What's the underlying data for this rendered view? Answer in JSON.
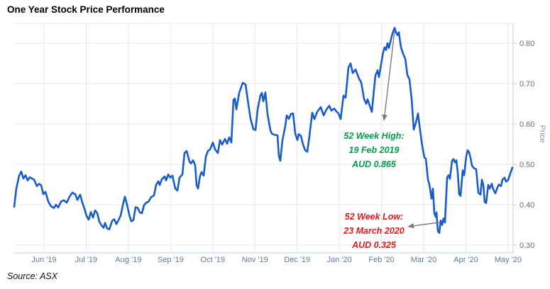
{
  "header": {
    "title": "One Year Stock Price Performance"
  },
  "footer": {
    "source": "Source: ASX"
  },
  "chart_data": {
    "type": "line",
    "title": "One Year Stock Price Performance",
    "xlabel": "",
    "ylabel": "Price",
    "line_color": "#1a5dc8",
    "grid": true,
    "legend_position": "none",
    "x_tick_labels": [
      "Jun '19",
      "Jul '19",
      "Aug '19",
      "Sep '19",
      "Oct '19",
      "Nov '19",
      "Dec '19",
      "Jan '20",
      "Feb '20",
      "Mar '20",
      "Apr '20",
      "May '20"
    ],
    "y_ticks": [
      0.3,
      0.4,
      0.5,
      0.6,
      0.7,
      0.8
    ],
    "y_tick_labels": [
      "0.30",
      "0.40",
      "0.50",
      "0.60",
      "0.70",
      "0.80"
    ],
    "ylim": [
      0.285,
      0.855
    ],
    "annotations": {
      "high": {
        "lines": [
          "52 Week High:",
          "19 Feb 2019",
          "AUD 0.865"
        ],
        "color": "#00a14c",
        "value": 0.865
      },
      "low": {
        "lines": [
          "52 Week Low:",
          "23 March 2020",
          "AUD 0.325"
        ],
        "color": "#e11b1b",
        "value": 0.325
      }
    },
    "series": [
      {
        "name": "Price",
        "points": [
          [
            20,
            0.395
          ],
          [
            23,
            0.44
          ],
          [
            27,
            0.472
          ],
          [
            30,
            0.482
          ],
          [
            33,
            0.465
          ],
          [
            36,
            0.473
          ],
          [
            39,
            0.46
          ],
          [
            42,
            0.468
          ],
          [
            45,
            0.465
          ],
          [
            48,
            0.462
          ],
          [
            52,
            0.446
          ],
          [
            55,
            0.452
          ],
          [
            58,
            0.448
          ],
          [
            61,
            0.426
          ],
          [
            64,
            0.432
          ],
          [
            68,
            0.408
          ],
          [
            72,
            0.396
          ],
          [
            76,
            0.392
          ],
          [
            79,
            0.4
          ],
          [
            82,
            0.393
          ],
          [
            86,
            0.408
          ],
          [
            90,
            0.411
          ],
          [
            94,
            0.405
          ],
          [
            98,
            0.42
          ],
          [
            102,
            0.43
          ],
          [
            106,
            0.426
          ],
          [
            109,
            0.412
          ],
          [
            113,
            0.425
          ],
          [
            116,
            0.405
          ],
          [
            119,
            0.39
          ],
          [
            122,
            0.372
          ],
          [
            125,
            0.363
          ],
          [
            128,
            0.382
          ],
          [
            131,
            0.368
          ],
          [
            134,
            0.386
          ],
          [
            137,
            0.379
          ],
          [
            140,
            0.358
          ],
          [
            143,
            0.349
          ],
          [
            146,
            0.343
          ],
          [
            148,
            0.355
          ],
          [
            151,
            0.341
          ],
          [
            154,
            0.339
          ],
          [
            158,
            0.36
          ],
          [
            161,
            0.364
          ],
          [
            164,
            0.352
          ],
          [
            167,
            0.362
          ],
          [
            170,
            0.373
          ],
          [
            173,
            0.398
          ],
          [
            176,
            0.42
          ],
          [
            179,
            0.4
          ],
          [
            182,
            0.376
          ],
          [
            185,
            0.359
          ],
          [
            188,
            0.362
          ],
          [
            191,
            0.394
          ],
          [
            194,
            0.392
          ],
          [
            197,
            0.381
          ],
          [
            200,
            0.379
          ],
          [
            203,
            0.399
          ],
          [
            206,
            0.405
          ],
          [
            209,
            0.407
          ],
          [
            213,
            0.419
          ],
          [
            217,
            0.423
          ],
          [
            220,
            0.449
          ],
          [
            223,
            0.458
          ],
          [
            225,
            0.449
          ],
          [
            228,
            0.463
          ],
          [
            232,
            0.47
          ],
          [
            234,
            0.46
          ],
          [
            237,
            0.475
          ],
          [
            240,
            0.467
          ],
          [
            243,
            0.472
          ],
          [
            247,
            0.44
          ],
          [
            250,
            0.435
          ],
          [
            253,
            0.467
          ],
          [
            257,
            0.475
          ],
          [
            260,
            0.528
          ],
          [
            263,
            0.533
          ],
          [
            267,
            0.507
          ],
          [
            269,
            0.502
          ],
          [
            272,
            0.51
          ],
          [
            275,
            0.498
          ],
          [
            277,
            0.449
          ],
          [
            279,
            0.44
          ],
          [
            282,
            0.472
          ],
          [
            284,
            0.481
          ],
          [
            287,
            0.472
          ],
          [
            290,
            0.519
          ],
          [
            293,
            0.533
          ],
          [
            296,
            0.537
          ],
          [
            300,
            0.554
          ],
          [
            303,
            0.537
          ],
          [
            307,
            0.528
          ],
          [
            310,
            0.56
          ],
          [
            313,
            0.549
          ],
          [
            317,
            0.563
          ],
          [
            320,
            0.551
          ],
          [
            323,
            0.567
          ],
          [
            326,
            0.554
          ],
          [
            329,
            0.66
          ],
          [
            331,
            0.663
          ],
          [
            333,
            0.636
          ],
          [
            337,
            0.677
          ],
          [
            342,
            0.702
          ],
          [
            346,
            0.698
          ],
          [
            350,
            0.648
          ],
          [
            353,
            0.613
          ],
          [
            357,
            0.587
          ],
          [
            360,
            0.585
          ],
          [
            363,
            0.636
          ],
          [
            367,
            0.671
          ],
          [
            369,
            0.677
          ],
          [
            371,
            0.656
          ],
          [
            374,
            0.678
          ],
          [
            377,
            0.624
          ],
          [
            381,
            0.585
          ],
          [
            383,
            0.576
          ],
          [
            387,
            0.573
          ],
          [
            391,
            0.572
          ],
          [
            393,
            0.52
          ],
          [
            395,
            0.509
          ],
          [
            398,
            0.56
          ],
          [
            402,
            0.595
          ],
          [
            404,
            0.621
          ],
          [
            407,
            0.613
          ],
          [
            410,
            0.625
          ],
          [
            413,
            0.626
          ],
          [
            416,
            0.577
          ],
          [
            419,
            0.56
          ],
          [
            421,
            0.575
          ],
          [
            424,
            0.57
          ],
          [
            427,
            0.549
          ],
          [
            430,
            0.535
          ],
          [
            433,
            0.531
          ],
          [
            436,
            0.57
          ],
          [
            440,
            0.628
          ],
          [
            443,
            0.612
          ],
          [
            447,
            0.63
          ],
          [
            452,
            0.642
          ],
          [
            456,
            0.621
          ],
          [
            460,
            0.636
          ],
          [
            464,
            0.645
          ],
          [
            467,
            0.633
          ],
          [
            471,
            0.638
          ],
          [
            474,
            0.631
          ],
          [
            477,
            0.626
          ],
          [
            480,
            0.612
          ],
          [
            484,
            0.67
          ],
          [
            487,
            0.665
          ],
          [
            491,
            0.74
          ],
          [
            494,
            0.75
          ],
          [
            497,
            0.726
          ],
          [
            501,
            0.735
          ],
          [
            506,
            0.712
          ],
          [
            509,
            0.703
          ],
          [
            513,
            0.662
          ],
          [
            516,
            0.65
          ],
          [
            518,
            0.661
          ],
          [
            521,
            0.645
          ],
          [
            524,
            0.63
          ],
          [
            527,
            0.685
          ],
          [
            529,
            0.72
          ],
          [
            532,
            0.733
          ],
          [
            534,
            0.716
          ],
          [
            537,
            0.748
          ],
          [
            540,
            0.778
          ],
          [
            542,
            0.79
          ],
          [
            544,
            0.783
          ],
          [
            546,
            0.8
          ],
          [
            548,
            0.788
          ],
          [
            551,
            0.81
          ],
          [
            553,
            0.824
          ],
          [
            556,
            0.838
          ],
          [
            558,
            0.827
          ],
          [
            560,
            0.82
          ],
          [
            562,
            0.827
          ],
          [
            565,
            0.79
          ],
          [
            568,
            0.774
          ],
          [
            571,
            0.762
          ],
          [
            574,
            0.722
          ],
          [
            577,
            0.71
          ],
          [
            580,
            0.663
          ],
          [
            583,
            0.586
          ],
          [
            586,
            0.603
          ],
          [
            589,
            0.626
          ],
          [
            592,
            0.584
          ],
          [
            595,
            0.545
          ],
          [
            598,
            0.517
          ],
          [
            600,
            0.514
          ],
          [
            603,
            0.463
          ],
          [
            605,
            0.45
          ],
          [
            607,
            0.428
          ],
          [
            608,
            0.415
          ],
          [
            610,
            0.44
          ],
          [
            612,
            0.379
          ],
          [
            614,
            0.37
          ],
          [
            615,
            0.381
          ],
          [
            617,
            0.335
          ],
          [
            619,
            0.33
          ],
          [
            621,
            0.361
          ],
          [
            623,
            0.35
          ],
          [
            625,
            0.366
          ],
          [
            627,
            0.356
          ],
          [
            630,
            0.467
          ],
          [
            632,
            0.473
          ],
          [
            634,
            0.464
          ],
          [
            637,
            0.509
          ],
          [
            639,
            0.513
          ],
          [
            641,
            0.505
          ],
          [
            643,
            0.51
          ],
          [
            645,
            0.48
          ],
          [
            647,
            0.426
          ],
          [
            649,
            0.422
          ],
          [
            652,
            0.485
          ],
          [
            654,
            0.473
          ],
          [
            657,
            0.52
          ],
          [
            659,
            0.535
          ],
          [
            661,
            0.53
          ],
          [
            663,
            0.516
          ],
          [
            665,
            0.497
          ],
          [
            668,
            0.49
          ],
          [
            671,
            0.488
          ],
          [
            674,
            0.43
          ],
          [
            677,
            0.425
          ],
          [
            679,
            0.462
          ],
          [
            681,
            0.45
          ],
          [
            683,
            0.407
          ],
          [
            685,
            0.404
          ],
          [
            688,
            0.449
          ],
          [
            690,
            0.44
          ],
          [
            693,
            0.452
          ],
          [
            695,
            0.438
          ],
          [
            698,
            0.428
          ],
          [
            701,
            0.443
          ],
          [
            703,
            0.45
          ],
          [
            706,
            0.446
          ],
          [
            708,
            0.462
          ],
          [
            711,
            0.467
          ],
          [
            713,
            0.457
          ],
          [
            716,
            0.461
          ],
          [
            719,
            0.477
          ],
          [
            722,
            0.492
          ]
        ]
      }
    ]
  }
}
